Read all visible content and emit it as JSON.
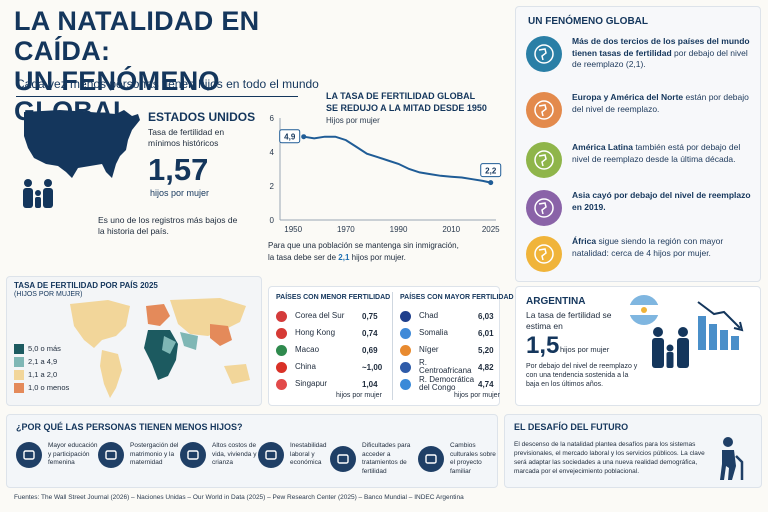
{
  "header": {
    "title_line1": "LA NATALIDAD EN CAÍDA:",
    "title_line2": "UN FENÓMENO GLOBAL",
    "subtitle": "Cada vez menos personas tienen hijos en todo el mundo"
  },
  "usa": {
    "title": "ESTADOS UNIDOS",
    "desc": "Tasa de fertilidad en mínimos históricos",
    "value": "1,57",
    "unit": "hijos por mujer",
    "note": "Es uno de los registros más bajos de la historia del país."
  },
  "global_chart": {
    "title_line1": "LA TASA DE FERTILIDAD GLOBAL",
    "title_line2": "SE REDUJO A LA MITAD DESDE 1950",
    "subtitle": "Hijos por mujer",
    "start_label": "4,9",
    "end_label": "2,2",
    "note_line1": "Para que una población se mantenga sin inmigración,",
    "note_pre": "la tasa debe ser de ",
    "note_value": "2,1",
    "note_post": " hijos por mujer."
  },
  "chart_data": {
    "type": "line",
    "title": "LA TASA DE FERTILIDAD GLOBAL SE REDUJO A LA MITAD DESDE 1950",
    "ylabel": "Hijos por mujer",
    "xlabel": "",
    "x_ticks": [
      "1950",
      "1970",
      "1990",
      "2010",
      "2025"
    ],
    "y_ticks": [
      "0",
      "2",
      "4",
      "6"
    ],
    "xlim": [
      1945,
      2027
    ],
    "ylim": [
      0,
      6
    ],
    "grid": false,
    "series": [
      {
        "x": [
          1954,
          1958,
          1962,
          1966,
          1970,
          1974,
          1978,
          1982,
          1986,
          1990,
          1994,
          1998,
          2002,
          2006,
          2010,
          2014,
          2018,
          2022,
          2025
        ],
        "y": [
          4.9,
          4.8,
          4.9,
          4.9,
          4.7,
          4.3,
          3.9,
          3.7,
          3.5,
          3.3,
          3.0,
          2.8,
          2.7,
          2.6,
          2.55,
          2.5,
          2.4,
          2.3,
          2.2
        ]
      }
    ]
  },
  "right": {
    "title": "UN FENÓMENO GLOBAL",
    "items": [
      {
        "icon": "globe-icon",
        "bold": "Más de dos tercios de los países del mundo tienen tasas de fertilidad",
        "rest": " por debajo del nivel de reemplazo (2,1).",
        "color": "#2a7fa6"
      },
      {
        "icon": "americas-icon",
        "bold": "Europa y América del Norte",
        "rest": " están por debajo del nivel de reemplazo.",
        "color": "#e38a4c"
      },
      {
        "icon": "latin-america-icon",
        "bold": "América Latina",
        "rest": " también está por debajo del nivel de reemplazo desde la última década.",
        "color": "#8fb54a"
      },
      {
        "icon": "asia-icon",
        "bold": "Asia cayó por debajo del nivel de reemplazo en 2019.",
        "rest": "",
        "color": "#8a63a8"
      },
      {
        "icon": "africa-icon",
        "bold": "África",
        "rest": " sigue siendo la región con mayor natalidad: cerca de 4 hijos por mujer.",
        "color": "#f0b43a"
      }
    ]
  },
  "map": {
    "title": "TASA DE FERTILIDAD POR PAÍS 2025",
    "subtitle": "(HIJOS POR MUJER)",
    "legend": [
      {
        "label": "5,0 o más",
        "color": "#1c5a60"
      },
      {
        "label": "2,1 a 4,9",
        "color": "#7fb7b5"
      },
      {
        "label": "1,1 a 2,0",
        "color": "#f2d69a"
      },
      {
        "label": "1,0 o menos",
        "color": "#e48a5a"
      }
    ]
  },
  "low_table": {
    "title": "PAÍSES CON MENOR FERTILIDAD",
    "footer": "hijos por mujer",
    "rows": [
      {
        "country": "Corea del Sur",
        "value": "0,75",
        "flag": "#d43b3b"
      },
      {
        "country": "Hong Kong",
        "value": "0,74",
        "flag": "#d63a35"
      },
      {
        "country": "Macao",
        "value": "0,69",
        "flag": "#2f8a4e"
      },
      {
        "country": "China",
        "value": "~1,00",
        "flag": "#d93127"
      },
      {
        "country": "Singapur",
        "value": "1,04",
        "flag": "#e24a4a"
      }
    ]
  },
  "high_table": {
    "title": "PAÍSES CON MAYOR FERTILIDAD",
    "footer": "hijos por mujer",
    "rows": [
      {
        "country": "Chad",
        "value": "6,03",
        "flag": "#1f3f8c"
      },
      {
        "country": "Somalia",
        "value": "6,01",
        "flag": "#3f8ad8"
      },
      {
        "country": "Níger",
        "value": "5,20",
        "flag": "#e88a2f"
      },
      {
        "country": "R. Centroafricana",
        "value": "4,82",
        "flag": "#2e5ba8"
      },
      {
        "country": "R. Democrática del Congo",
        "value": "4,74",
        "flag": "#3a8ad8"
      }
    ]
  },
  "argentina": {
    "title": "ARGENTINA",
    "desc": "La tasa de fertilidad se estima en",
    "value": "1,5",
    "unit": "hijos por mujer",
    "note": "Por debajo del nivel de reemplazo y con una tendencia sostenida a la baja en los últimos años."
  },
  "why": {
    "title": "¿POR QUÉ LAS PERSONAS TIENEN MENOS HIJOS?",
    "items": [
      {
        "icon": "graduation-cap-icon",
        "label": "Mayor educación y participación femenina"
      },
      {
        "icon": "calendar-icon",
        "label": "Postergación del matrimonio y la maternidad"
      },
      {
        "icon": "money-icon",
        "label": "Altos costos de vida, vivienda y crianza"
      },
      {
        "icon": "briefcase-icon",
        "label": "Inestabilidad laboral y económica"
      },
      {
        "icon": "heart-pulse-icon",
        "label": "Dificultades para acceder a tratamientos de fertilidad"
      },
      {
        "icon": "people-icon",
        "label": "Cambios culturales sobre el proyecto familiar"
      }
    ]
  },
  "future": {
    "title": "EL DESAFÍO DEL FUTURO",
    "text": "El descenso de la natalidad plantea desafíos para los sistemas previsionales, el mercado laboral y los servicios públicos. La clave será adaptar las sociedades a una nueva realidad demográfica, marcada por el envejecimiento poblacional."
  },
  "footer": {
    "sources": "Fuentes: The Wall Street Journal (2026) – Naciones Unidas – Our World in Data (2025) – Pew Research Center (2025) – Banco Mundial – INDEC Argentina"
  }
}
